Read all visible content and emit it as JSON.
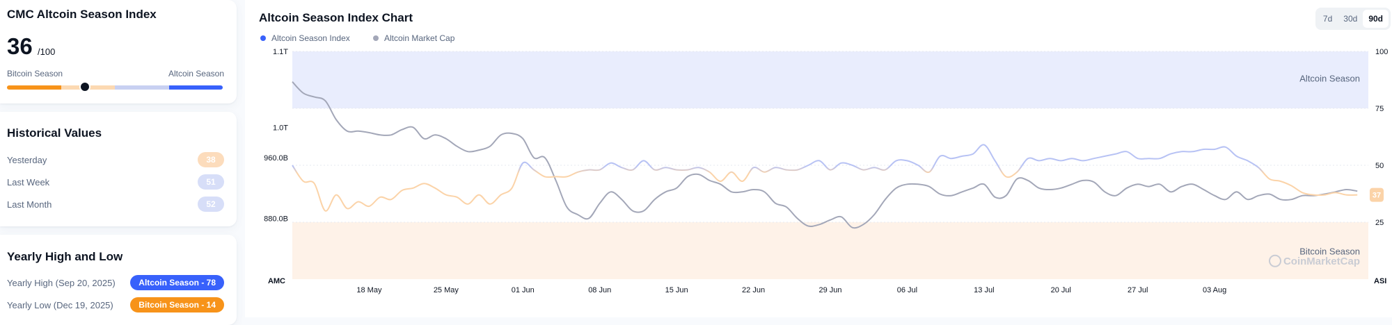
{
  "index_card": {
    "title": "CMC Altcoin Season Index",
    "value": "36",
    "max": "/100",
    "left_label": "Bitcoin Season",
    "right_label": "Altcoin Season",
    "gauge_value": 36,
    "colors": [
      "#f7931a",
      "#fcd9b2",
      "#c8d0f2",
      "#3861fb"
    ]
  },
  "historical": {
    "title": "Historical Values",
    "rows": [
      {
        "label": "Yesterday",
        "value": "38",
        "color": "#fcdcbc"
      },
      {
        "label": "Last Week",
        "value": "51",
        "color": "#d7def8"
      },
      {
        "label": "Last Month",
        "value": "52",
        "color": "#d7def8"
      }
    ]
  },
  "yearly": {
    "title": "Yearly High and Low",
    "high_label": "Yearly High",
    "high_date": "(Sep 20, 2025)",
    "high_badge": "Altcoin Season - 78",
    "high_color": "#3861fb",
    "low_label": "Yearly Low",
    "low_date": "(Dec 19, 2025)",
    "low_badge": "Bitcoin Season - 14",
    "low_color": "#f7931a"
  },
  "chart_panel": {
    "title": "Altcoin Season Index Chart",
    "ranges": [
      {
        "label": "7d",
        "active": false
      },
      {
        "label": "30d",
        "active": false
      },
      {
        "label": "90d",
        "active": true
      }
    ]
  },
  "chart_data": {
    "type": "line",
    "title": "Altcoin Season Index Chart",
    "left_axis_label": "AMC",
    "right_axis_label": "ASI",
    "left_ticks": [
      "1.1T",
      "1.0T",
      "960.0B",
      "880.0B"
    ],
    "left_ylim": [
      800,
      1100
    ],
    "right_ticks": [
      "100",
      "75",
      "50",
      "25"
    ],
    "right_ylim": [
      0,
      100
    ],
    "x_range": [
      0,
      98
    ],
    "x_ticks": [
      {
        "x": 7,
        "label": "18 May"
      },
      {
        "x": 14,
        "label": "25 May"
      },
      {
        "x": 21,
        "label": "01 Jun"
      },
      {
        "x": 28,
        "label": "08 Jun"
      },
      {
        "x": 35,
        "label": "15 Jun"
      },
      {
        "x": 42,
        "label": "22 Jun"
      },
      {
        "x": 49,
        "label": "29 Jun"
      },
      {
        "x": 56,
        "label": "06 Jul"
      },
      {
        "x": 63,
        "label": "13 Jul"
      },
      {
        "x": 70,
        "label": "20 Jul"
      },
      {
        "x": 77,
        "label": "27 Jul"
      },
      {
        "x": 84,
        "label": "03 Aug"
      }
    ],
    "bands": [
      {
        "label": "Altcoin Season",
        "from": 75,
        "to": 100,
        "color": "#e9edfd"
      },
      {
        "label": "Bitcoin Season",
        "from": 0,
        "to": 25,
        "color": "#fef2e8"
      }
    ],
    "watermark": "CoinMarketCap",
    "grid": true,
    "legend_position": "top-left",
    "current_value_label": "37",
    "series": [
      {
        "name": "Altcoin Season Index",
        "axis": "right",
        "color_low": "#fbd3a8",
        "color_high": "#b7c2f4",
        "points": [
          [
            0,
            50
          ],
          [
            1,
            43
          ],
          [
            2,
            42
          ],
          [
            3,
            30
          ],
          [
            4,
            37
          ],
          [
            5,
            31
          ],
          [
            6,
            34
          ],
          [
            7,
            32
          ],
          [
            8,
            36
          ],
          [
            9,
            35
          ],
          [
            10,
            39
          ],
          [
            11,
            40
          ],
          [
            12,
            42
          ],
          [
            13,
            40
          ],
          [
            14,
            37
          ],
          [
            15,
            36
          ],
          [
            16,
            33
          ],
          [
            17,
            37
          ],
          [
            18,
            33
          ],
          [
            19,
            37
          ],
          [
            20,
            40
          ],
          [
            21,
            51
          ],
          [
            22,
            48
          ],
          [
            23,
            45
          ],
          [
            24,
            45
          ],
          [
            25,
            45
          ],
          [
            26,
            47
          ],
          [
            27,
            48
          ],
          [
            28,
            48
          ],
          [
            29,
            51
          ],
          [
            30,
            49
          ],
          [
            31,
            48
          ],
          [
            32,
            52
          ],
          [
            33,
            48
          ],
          [
            34,
            49
          ],
          [
            35,
            48
          ],
          [
            36,
            48
          ],
          [
            37,
            49
          ],
          [
            38,
            47
          ],
          [
            39,
            43
          ],
          [
            40,
            47
          ],
          [
            41,
            43
          ],
          [
            42,
            49
          ],
          [
            43,
            47
          ],
          [
            44,
            49
          ],
          [
            45,
            48
          ],
          [
            46,
            48
          ],
          [
            47,
            50
          ],
          [
            48,
            52
          ],
          [
            49,
            48
          ],
          [
            50,
            51
          ],
          [
            51,
            50
          ],
          [
            52,
            48
          ],
          [
            53,
            49
          ],
          [
            54,
            48
          ],
          [
            55,
            52
          ],
          [
            56,
            52
          ],
          [
            57,
            50
          ],
          [
            58,
            47
          ],
          [
            59,
            54
          ],
          [
            60,
            53
          ],
          [
            61,
            54
          ],
          [
            62,
            55
          ],
          [
            63,
            59
          ],
          [
            64,
            52
          ],
          [
            65,
            45
          ],
          [
            66,
            47
          ],
          [
            67,
            53
          ],
          [
            68,
            52
          ],
          [
            69,
            53
          ],
          [
            70,
            52
          ],
          [
            71,
            53
          ],
          [
            72,
            52
          ],
          [
            73,
            53
          ],
          [
            74,
            54
          ],
          [
            75,
            55
          ],
          [
            76,
            56
          ],
          [
            77,
            53
          ],
          [
            78,
            53
          ],
          [
            79,
            53
          ],
          [
            80,
            55
          ],
          [
            81,
            56
          ],
          [
            82,
            56
          ],
          [
            83,
            57
          ],
          [
            84,
            57
          ],
          [
            85,
            58
          ],
          [
            86,
            54
          ],
          [
            87,
            52
          ],
          [
            88,
            49
          ],
          [
            89,
            44
          ],
          [
            90,
            43
          ],
          [
            91,
            41
          ],
          [
            92,
            38
          ],
          [
            93,
            37
          ],
          [
            94,
            37
          ],
          [
            95,
            38
          ],
          [
            96,
            37
          ],
          [
            97,
            37
          ]
        ]
      },
      {
        "name": "Altcoin Market Cap",
        "axis": "left",
        "color": "#a3a7b8",
        "points": [
          [
            0,
            1060
          ],
          [
            1,
            1045
          ],
          [
            2,
            1040
          ],
          [
            3,
            1035
          ],
          [
            4,
            1010
          ],
          [
            5,
            995
          ],
          [
            6,
            995
          ],
          [
            7,
            993
          ],
          [
            8,
            990
          ],
          [
            9,
            990
          ],
          [
            10,
            997
          ],
          [
            11,
            1000
          ],
          [
            12,
            985
          ],
          [
            13,
            990
          ],
          [
            14,
            985
          ],
          [
            15,
            975
          ],
          [
            16,
            968
          ],
          [
            17,
            970
          ],
          [
            18,
            975
          ],
          [
            19,
            990
          ],
          [
            20,
            992
          ],
          [
            21,
            985
          ],
          [
            22,
            960
          ],
          [
            23,
            960
          ],
          [
            24,
            930
          ],
          [
            25,
            895
          ],
          [
            26,
            885
          ],
          [
            27,
            880
          ],
          [
            28,
            900
          ],
          [
            29,
            915
          ],
          [
            30,
            905
          ],
          [
            31,
            890
          ],
          [
            32,
            890
          ],
          [
            33,
            905
          ],
          [
            34,
            915
          ],
          [
            35,
            920
          ],
          [
            36,
            935
          ],
          [
            37,
            938
          ],
          [
            38,
            930
          ],
          [
            39,
            925
          ],
          [
            40,
            915
          ],
          [
            41,
            915
          ],
          [
            42,
            918
          ],
          [
            43,
            915
          ],
          [
            44,
            900
          ],
          [
            45,
            895
          ],
          [
            46,
            880
          ],
          [
            47,
            870
          ],
          [
            48,
            872
          ],
          [
            49,
            878
          ],
          [
            50,
            882
          ],
          [
            51,
            868
          ],
          [
            52,
            872
          ],
          [
            53,
            885
          ],
          [
            54,
            905
          ],
          [
            55,
            920
          ],
          [
            56,
            925
          ],
          [
            57,
            925
          ],
          [
            58,
            922
          ],
          [
            59,
            912
          ],
          [
            60,
            910
          ],
          [
            61,
            915
          ],
          [
            62,
            920
          ],
          [
            63,
            925
          ],
          [
            64,
            908
          ],
          [
            65,
            910
          ],
          [
            66,
            932
          ],
          [
            67,
            930
          ],
          [
            68,
            920
          ],
          [
            69,
            918
          ],
          [
            70,
            920
          ],
          [
            71,
            925
          ],
          [
            72,
            930
          ],
          [
            73,
            928
          ],
          [
            74,
            915
          ],
          [
            75,
            910
          ],
          [
            76,
            920
          ],
          [
            77,
            925
          ],
          [
            78,
            922
          ],
          [
            79,
            925
          ],
          [
            80,
            915
          ],
          [
            81,
            922
          ],
          [
            82,
            925
          ],
          [
            83,
            918
          ],
          [
            84,
            910
          ],
          [
            85,
            905
          ],
          [
            86,
            915
          ],
          [
            87,
            905
          ],
          [
            88,
            910
          ],
          [
            89,
            912
          ],
          [
            90,
            905
          ],
          [
            91,
            905
          ],
          [
            92,
            910
          ],
          [
            93,
            910
          ],
          [
            94,
            912
          ],
          [
            95,
            915
          ],
          [
            96,
            918
          ],
          [
            97,
            916
          ]
        ]
      }
    ]
  }
}
